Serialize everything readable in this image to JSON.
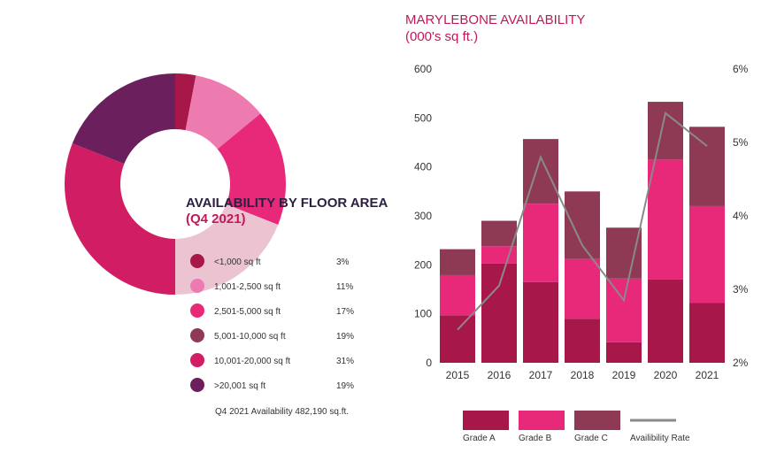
{
  "chart_data": [
    {
      "type": "pie",
      "title": "AVAILABILITY BY FLOOR AREA",
      "subtitle": "(Q4 2021)",
      "labels": [
        "<1,000 sq ft",
        "1,001-2,500 sq ft",
        "2,501-5,000 sq ft",
        "5,001-10,000 sq ft",
        "10,001-20,000 sq ft",
        ">20,001 sq ft"
      ],
      "percent_labels": [
        "3%",
        "11%",
        "17%",
        "19%",
        "31%",
        "19%"
      ],
      "values": [
        3,
        11,
        17,
        19,
        31,
        19
      ],
      "colors": [
        "#a8174a",
        "#ee7bb0",
        "#e8297a",
        "#ebc3d1",
        "#d11d63",
        "#6b1f5c"
      ],
      "legend_colors": [
        "#a8174a",
        "#ee7bb0",
        "#e8297a",
        "#8e3a55",
        "#d11d63",
        "#6b1f5c"
      ],
      "note": "Q4 2021 Availability 482,190 sq.ft."
    },
    {
      "type": "bar",
      "stacked": true,
      "title": "MARYLEBONE AVAILABILITY",
      "subtitle": "(000's sq ft.)",
      "categories": [
        "2015",
        "2016",
        "2017",
        "2018",
        "2019",
        "2020",
        "2021"
      ],
      "series": [
        {
          "name": "Grade A",
          "color": "#a8174a",
          "values": [
            97,
            203,
            165,
            90,
            42,
            170,
            122
          ]
        },
        {
          "name": "Grade B",
          "color": "#e8297a",
          "values": [
            82,
            35,
            160,
            122,
            130,
            245,
            198
          ]
        },
        {
          "name": "Grade C",
          "color": "#8e3a55",
          "values": [
            53,
            52,
            132,
            138,
            104,
            118,
            162
          ]
        }
      ],
      "line": {
        "name": "Availibility Rate",
        "color": "#8a8a8a",
        "values": [
          2.45,
          3.05,
          4.8,
          3.6,
          2.85,
          5.4,
          4.95
        ]
      },
      "yticks": [
        "0",
        "100",
        "200",
        "300",
        "400",
        "500",
        "600"
      ],
      "y2ticks": [
        "2%",
        "3%",
        "4%",
        "5%",
        "6%"
      ],
      "ylim": [
        0,
        600
      ],
      "y2lim": [
        2,
        6
      ]
    }
  ]
}
